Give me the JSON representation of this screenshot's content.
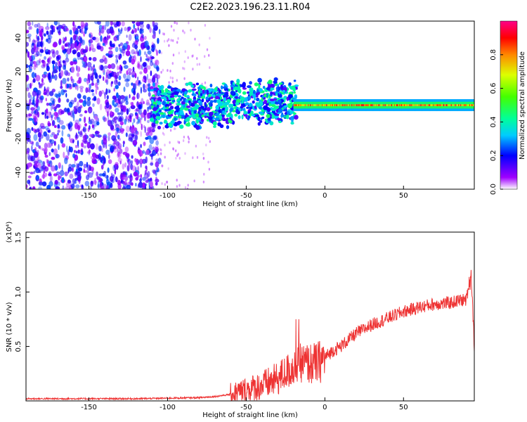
{
  "figure": {
    "title": "C2E2.2023.196.23.11.R04"
  },
  "chart_data": [
    {
      "type": "heatmap",
      "title": "C2E2.2023.196.23.11.R04",
      "xlabel": "Height of straight line (km)",
      "ylabel": "Frequency (Hz)",
      "xlim": [
        -190,
        95
      ],
      "ylim": [
        -50,
        50
      ],
      "xticks": [
        -150,
        -100,
        -50,
        0,
        50
      ],
      "yticks": [
        -40,
        -20,
        0,
        20,
        40
      ],
      "colorbar": {
        "label": "Normalized spectral amplitude",
        "range": [
          0,
          1
        ],
        "ticks": [
          0.0,
          0.2,
          0.4,
          0.6,
          0.8
        ],
        "colormap": "rainbow"
      },
      "regions": [
        {
          "x_range": [
            -190,
            -110
          ],
          "frequency_range": [
            -50,
            50
          ],
          "amplitude": "0.1-0.3 scattered noise"
        },
        {
          "x_range": [
            -110,
            -20
          ],
          "frequency_range": [
            -12,
            15
          ],
          "amplitude": "0.2-0.5 band with scatter"
        },
        {
          "x_range": [
            -20,
            95
          ],
          "frequency_range": [
            -3,
            3
          ],
          "amplitude": "0.5-1.0 narrow band centred near 0 Hz"
        }
      ]
    },
    {
      "type": "line",
      "xlabel": "Height of straight line (km)",
      "ylabel": "SNR (10 * v/v)",
      "y_scale_label": "(x10⁴)",
      "xlim": [
        -190,
        95
      ],
      "ylim": [
        0,
        1.55
      ],
      "xticks": [
        -150,
        -100,
        -50,
        0,
        50
      ],
      "yticks": [
        0.5,
        1.0,
        1.5
      ],
      "color": "#ee3333",
      "series": [
        {
          "x": [
            -190,
            -150,
            -120,
            -100,
            -80,
            -70,
            -60,
            -55,
            -50,
            -45,
            -40,
            -35,
            -30,
            -25,
            -20,
            -15,
            -10,
            -5,
            0,
            5,
            10,
            15,
            20,
            25,
            30,
            40,
            50,
            60,
            70,
            80,
            85,
            90,
            93,
            95
          ],
          "values": [
            0.02,
            0.02,
            0.02,
            0.025,
            0.03,
            0.04,
            0.06,
            0.08,
            0.1,
            0.12,
            0.14,
            0.17,
            0.2,
            0.26,
            0.3,
            0.35,
            0.34,
            0.34,
            0.4,
            0.46,
            0.5,
            0.56,
            0.62,
            0.66,
            0.7,
            0.76,
            0.82,
            0.86,
            0.89,
            0.9,
            0.92,
            0.93,
            1.2,
            0.5
          ]
        }
      ]
    }
  ]
}
